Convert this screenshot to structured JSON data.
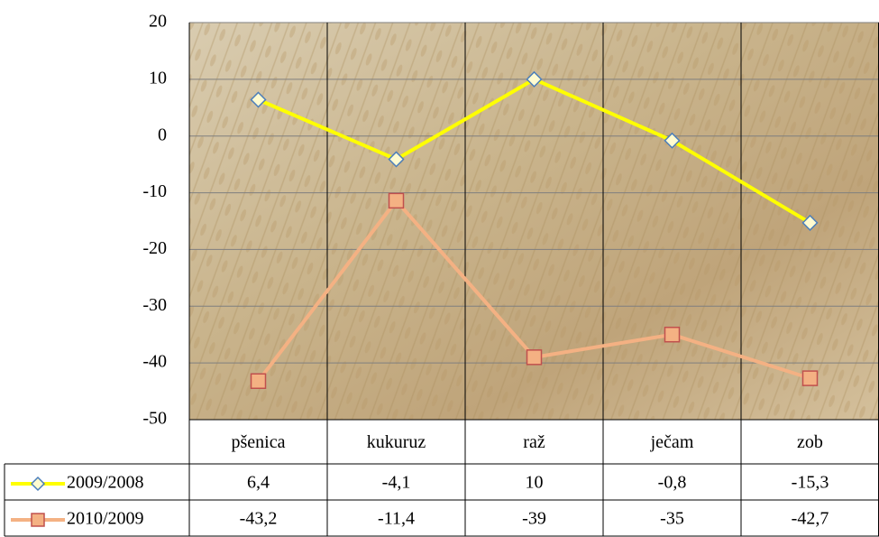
{
  "chart_data": {
    "type": "line",
    "categories": [
      "pšenica",
      "kukuruz",
      "raž",
      "ječam",
      "zob"
    ],
    "series": [
      {
        "name": "2009/2008",
        "color": "#ffff00",
        "marker": "diamond",
        "values": [
          6.4,
          -4.1,
          10,
          -0.8,
          -15.3
        ],
        "value_labels": [
          "6,4",
          "-4,1",
          "10",
          "-0,8",
          "-15,3"
        ]
      },
      {
        "name": "2010/2009",
        "color": "#f4b183",
        "marker": "square",
        "values": [
          -43.2,
          -11.4,
          -39,
          -35,
          -42.7
        ],
        "value_labels": [
          "-43,2",
          "-11,4",
          "-39",
          "-35",
          "-42,7"
        ]
      }
    ],
    "ylim": [
      -50,
      20
    ],
    "yticks": [
      -50,
      -40,
      -30,
      -20,
      -10,
      0,
      10,
      20
    ],
    "grid": true
  }
}
